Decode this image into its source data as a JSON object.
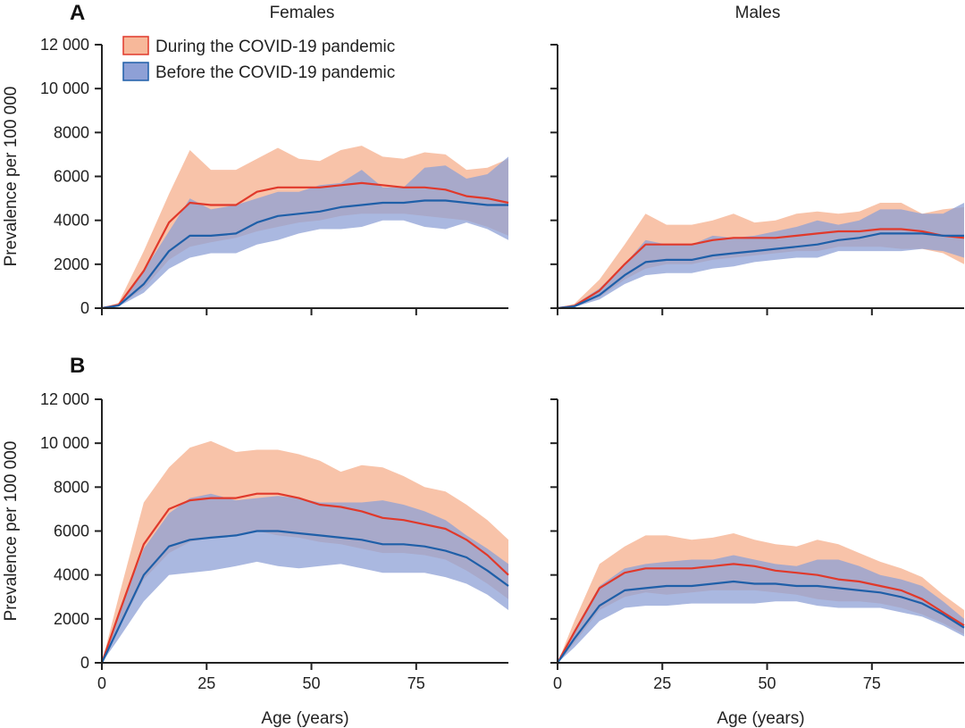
{
  "figure": {
    "panel_letters": [
      "A",
      "B"
    ],
    "column_titles": [
      "Females",
      "Males"
    ]
  },
  "legend": {
    "position": "top-left",
    "items": [
      {
        "label": "During the COVID-19 pandemic",
        "fill": "#f7b89a",
        "line": "#e0392b"
      },
      {
        "label": "Before the COVID-19 pandemic",
        "fill": "#8ea0d6",
        "line": "#1f5fa8"
      }
    ]
  },
  "colors": {
    "during_band": "#f7b89a",
    "during_line": "#e0392b",
    "before_band": "#8ea0d6",
    "before_line": "#1f5fa8",
    "axis": "#222222"
  },
  "chart_data": [
    {
      "type": "area",
      "panel": "A",
      "subplot": "Females",
      "title": "Females",
      "xlabel": "",
      "ylabel": "Prevalence per 100 000",
      "xlim": [
        0,
        97
      ],
      "ylim": [
        0,
        12000
      ],
      "xticks": [
        0,
        25,
        50,
        75
      ],
      "xtick_labels": [],
      "yticks": [
        0,
        2000,
        4000,
        6000,
        8000,
        10000,
        12000
      ],
      "ytick_labels": [
        "0",
        "2000",
        "4000",
        "6000",
        "8000",
        "10 000",
        "12 000"
      ],
      "x": [
        0,
        4,
        10,
        16,
        21,
        26,
        32,
        37,
        42,
        47,
        52,
        57,
        62,
        67,
        72,
        77,
        82,
        87,
        92,
        97
      ],
      "series": [
        {
          "name": "During the COVID-19 pandemic",
          "mean": [
            0,
            150,
            1700,
            3900,
            4800,
            4700,
            4700,
            5300,
            5500,
            5500,
            5500,
            5600,
            5700,
            5600,
            5500,
            5500,
            5400,
            5100,
            5000,
            4800
          ],
          "lower": [
            0,
            100,
            900,
            2200,
            2800,
            3000,
            3200,
            3500,
            3700,
            3900,
            4000,
            4200,
            4300,
            4300,
            4300,
            4200,
            4100,
            4000,
            3700,
            3300
          ],
          "upper": [
            0,
            250,
            2600,
            5200,
            7200,
            6300,
            6300,
            6800,
            7300,
            6800,
            6700,
            7200,
            7400,
            6900,
            6800,
            7100,
            7000,
            6300,
            6400,
            6800
          ]
        },
        {
          "name": "Before the COVID-19 pandemic",
          "mean": [
            0,
            120,
            1100,
            2600,
            3300,
            3300,
            3400,
            3900,
            4200,
            4300,
            4400,
            4600,
            4700,
            4800,
            4800,
            4900,
            4900,
            4800,
            4700,
            4700
          ],
          "lower": [
            0,
            80,
            700,
            1800,
            2300,
            2500,
            2500,
            2900,
            3100,
            3400,
            3600,
            3600,
            3700,
            4000,
            4000,
            3700,
            3600,
            3900,
            3600,
            3100
          ],
          "upper": [
            0,
            200,
            1700,
            3500,
            5000,
            4500,
            4700,
            5000,
            5300,
            5300,
            5600,
            5700,
            6300,
            5500,
            5500,
            6400,
            6500,
            5900,
            6100,
            6900
          ]
        }
      ]
    },
    {
      "type": "area",
      "panel": "A",
      "subplot": "Males",
      "title": "Males",
      "xlabel": "",
      "ylabel": "",
      "xlim": [
        0,
        97
      ],
      "ylim": [
        0,
        12000
      ],
      "xticks": [
        0,
        25,
        50,
        75
      ],
      "xtick_labels": [],
      "yticks": [
        0,
        2000,
        4000,
        6000,
        8000,
        10000,
        12000
      ],
      "ytick_labels": [],
      "x": [
        0,
        4,
        10,
        16,
        21,
        26,
        32,
        37,
        42,
        47,
        52,
        57,
        62,
        67,
        72,
        77,
        82,
        87,
        92,
        97
      ],
      "series": [
        {
          "name": "During the COVID-19 pandemic",
          "mean": [
            0,
            100,
            800,
            2000,
            2900,
            2900,
            2900,
            3100,
            3200,
            3200,
            3200,
            3300,
            3400,
            3500,
            3500,
            3600,
            3600,
            3500,
            3300,
            3200
          ],
          "lower": [
            0,
            60,
            500,
            1300,
            1800,
            2000,
            2000,
            2200,
            2300,
            2400,
            2500,
            2600,
            2600,
            2800,
            2800,
            2800,
            2700,
            2700,
            2500,
            2000
          ],
          "upper": [
            0,
            200,
            1300,
            2900,
            4300,
            3800,
            3800,
            4000,
            4300,
            3900,
            4000,
            4300,
            4400,
            4300,
            4400,
            4800,
            4800,
            4300,
            4500,
            4600
          ]
        },
        {
          "name": "Before the COVID-19 pandemic",
          "mean": [
            0,
            80,
            600,
            1500,
            2100,
            2200,
            2200,
            2400,
            2500,
            2600,
            2700,
            2800,
            2900,
            3100,
            3200,
            3400,
            3400,
            3400,
            3300,
            3300
          ],
          "lower": [
            0,
            50,
            400,
            1100,
            1500,
            1600,
            1600,
            1800,
            1900,
            2100,
            2200,
            2300,
            2300,
            2600,
            2600,
            2600,
            2600,
            2700,
            2600,
            2300
          ],
          "upper": [
            0,
            150,
            900,
            2000,
            3100,
            2900,
            2900,
            3300,
            3200,
            3300,
            3500,
            3700,
            4000,
            3800,
            4000,
            4500,
            4500,
            4300,
            4300,
            4800
          ]
        }
      ]
    },
    {
      "type": "area",
      "panel": "B",
      "subplot": "Females",
      "title": "",
      "xlabel": "Age (years)",
      "ylabel": "Prevalence per 100 000",
      "xlim": [
        0,
        97
      ],
      "ylim": [
        0,
        12000
      ],
      "xticks": [
        0,
        25,
        50,
        75
      ],
      "xtick_labels": [
        "0",
        "25",
        "50",
        "75"
      ],
      "yticks": [
        0,
        2000,
        4000,
        6000,
        8000,
        10000,
        12000
      ],
      "ytick_labels": [
        "0",
        "2000",
        "4000",
        "6000",
        "8000",
        "10 000",
        "12 000"
      ],
      "x": [
        0,
        4,
        10,
        16,
        21,
        26,
        32,
        37,
        42,
        47,
        52,
        57,
        62,
        67,
        72,
        77,
        82,
        87,
        92,
        97
      ],
      "series": [
        {
          "name": "During the COVID-19 pandemic",
          "mean": [
            0,
            2200,
            5400,
            7000,
            7400,
            7500,
            7500,
            7700,
            7700,
            7500,
            7200,
            7100,
            6900,
            6600,
            6500,
            6300,
            6100,
            5600,
            4900,
            4000
          ],
          "lower": [
            0,
            1500,
            3800,
            5000,
            5500,
            5700,
            5800,
            6000,
            5800,
            5700,
            5500,
            5400,
            5200,
            5000,
            5000,
            4900,
            4700,
            4200,
            3600,
            2900
          ],
          "upper": [
            0,
            3000,
            7300,
            8900,
            9800,
            10100,
            9600,
            9700,
            9700,
            9500,
            9200,
            8700,
            9000,
            8900,
            8500,
            8000,
            7800,
            7200,
            6500,
            5600
          ]
        },
        {
          "name": "Before the COVID-19 pandemic",
          "mean": [
            0,
            1600,
            4000,
            5300,
            5600,
            5700,
            5800,
            6000,
            6000,
            5900,
            5800,
            5700,
            5600,
            5400,
            5400,
            5300,
            5100,
            4800,
            4200,
            3500
          ],
          "lower": [
            0,
            1100,
            2800,
            4000,
            4100,
            4200,
            4400,
            4600,
            4400,
            4300,
            4400,
            4500,
            4300,
            4100,
            4100,
            4100,
            3900,
            3600,
            3100,
            2400
          ],
          "upper": [
            0,
            2200,
            5200,
            6800,
            7500,
            7700,
            7400,
            7500,
            7600,
            7500,
            7300,
            7300,
            7300,
            7400,
            7200,
            6900,
            6500,
            5800,
            5200,
            4500
          ]
        }
      ]
    },
    {
      "type": "area",
      "panel": "B",
      "subplot": "Males",
      "title": "",
      "xlabel": "Age (years)",
      "ylabel": "",
      "xlim": [
        0,
        97
      ],
      "ylim": [
        0,
        12000
      ],
      "xticks": [
        0,
        25,
        50,
        75
      ],
      "xtick_labels": [
        "0",
        "25",
        "50",
        "75"
      ],
      "yticks": [
        0,
        2000,
        4000,
        6000,
        8000,
        10000,
        12000
      ],
      "ytick_labels": [],
      "x": [
        0,
        4,
        10,
        16,
        21,
        26,
        32,
        37,
        42,
        47,
        52,
        57,
        62,
        67,
        72,
        77,
        82,
        87,
        92,
        97
      ],
      "series": [
        {
          "name": "During the COVID-19 pandemic",
          "mean": [
            0,
            1400,
            3400,
            4100,
            4300,
            4300,
            4300,
            4400,
            4500,
            4400,
            4200,
            4100,
            4000,
            3800,
            3700,
            3500,
            3300,
            2900,
            2300,
            1700
          ],
          "lower": [
            0,
            900,
            2400,
            3000,
            3200,
            3100,
            3200,
            3300,
            3300,
            3300,
            3200,
            3100,
            2900,
            2800,
            2800,
            2700,
            2500,
            2200,
            1800,
            1300
          ],
          "upper": [
            0,
            1900,
            4500,
            5300,
            5800,
            5800,
            5600,
            5700,
            5900,
            5600,
            5400,
            5300,
            5600,
            5400,
            5000,
            4600,
            4300,
            3900,
            3100,
            2400
          ]
        },
        {
          "name": "Before the COVID-19 pandemic",
          "mean": [
            0,
            1100,
            2600,
            3300,
            3400,
            3500,
            3500,
            3600,
            3700,
            3600,
            3600,
            3500,
            3500,
            3400,
            3300,
            3200,
            3000,
            2700,
            2200,
            1600
          ],
          "lower": [
            0,
            700,
            1900,
            2500,
            2600,
            2600,
            2700,
            2700,
            2700,
            2700,
            2800,
            2800,
            2600,
            2500,
            2500,
            2500,
            2300,
            2100,
            1700,
            1200
          ],
          "upper": [
            0,
            1500,
            3500,
            4300,
            4500,
            4600,
            4700,
            4700,
            4900,
            4700,
            4500,
            4400,
            4700,
            4700,
            4400,
            4000,
            3800,
            3500,
            2800,
            2000
          ]
        }
      ]
    }
  ]
}
